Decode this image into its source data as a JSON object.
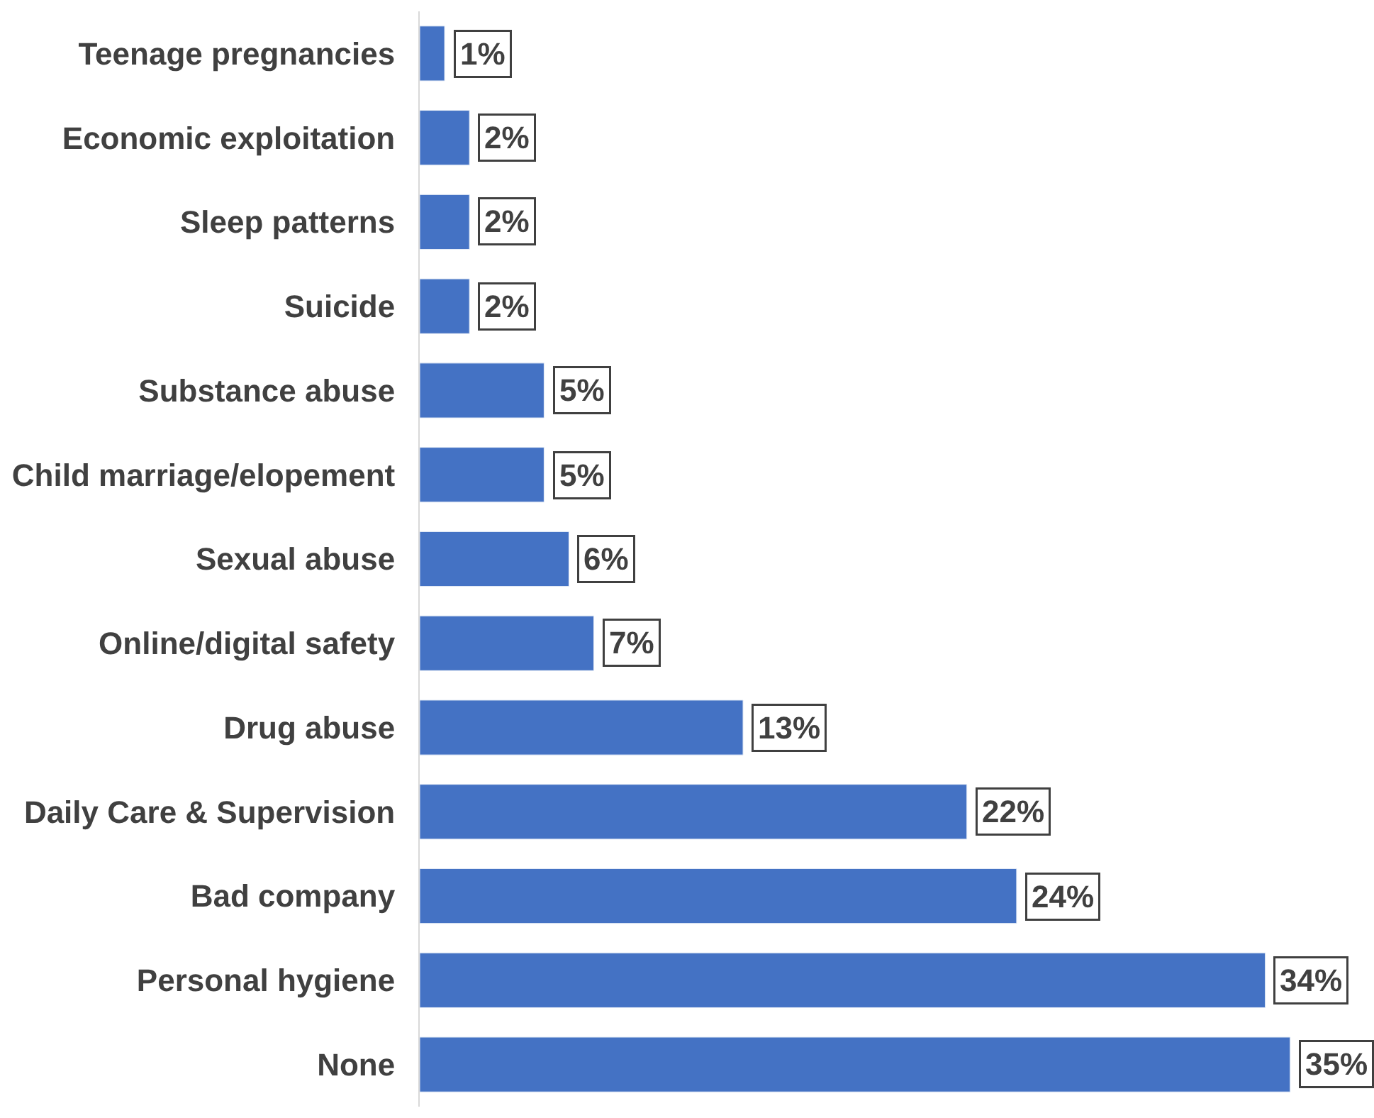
{
  "chart_data": {
    "type": "bar",
    "orientation": "horizontal",
    "categories": [
      "Teenage pregnancies",
      "Economic exploitation",
      "Sleep patterns",
      "Suicide",
      "Substance abuse",
      "Child marriage/elopement",
      "Sexual abuse",
      "Online/digital safety",
      "Drug abuse",
      "Daily Care & Supervision",
      "Bad company",
      "Personal hygiene",
      "None"
    ],
    "values": [
      1,
      2,
      2,
      2,
      5,
      5,
      6,
      7,
      13,
      22,
      24,
      34,
      35
    ],
    "value_labels": [
      "1%",
      "2%",
      "2%",
      "2%",
      "5%",
      "5%",
      "6%",
      "7%",
      "13%",
      "22%",
      "24%",
      "34%",
      "35%"
    ],
    "color": "#4472c4"
  }
}
